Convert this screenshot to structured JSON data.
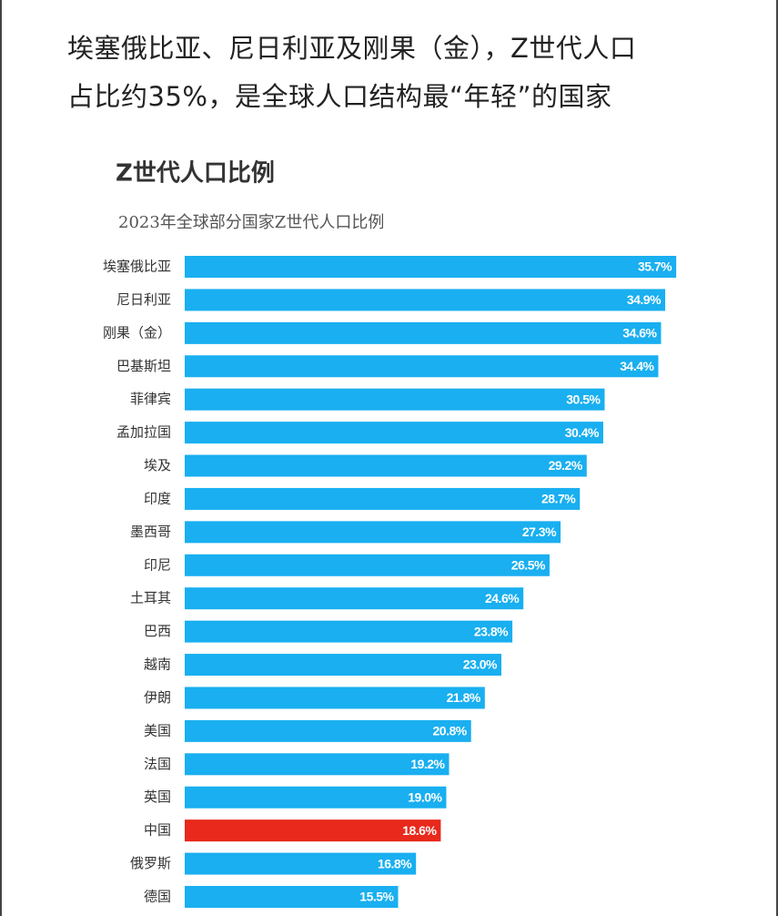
{
  "headline": [
    "埃塞俄比亚、尼日利亚及刚果（金），Z世代人口",
    "占比约35%，是全球人口结构最“年轻”的国家"
  ],
  "chart_data": {
    "type": "bar",
    "orientation": "horizontal",
    "title": "Z世代人口比例",
    "subtitle": "2023年全球部分国家Z世代人口比例",
    "categories": [
      "埃塞俄比亚",
      "尼日利亚",
      "刚果（金）",
      "巴基斯坦",
      "菲律宾",
      "孟加拉国",
      "埃及",
      "印度",
      "墨西哥",
      "印尼",
      "土耳其",
      "巴西",
      "越南",
      "伊朗",
      "美国",
      "法国",
      "英国",
      "中国",
      "俄罗斯",
      "德国"
    ],
    "values": [
      35.7,
      34.9,
      34.6,
      34.4,
      30.5,
      30.4,
      29.2,
      28.7,
      27.3,
      26.5,
      24.6,
      23.8,
      23.0,
      21.8,
      20.8,
      19.2,
      19.0,
      18.6,
      16.8,
      15.5
    ],
    "value_labels": [
      "35.7%",
      "34.9%",
      "34.6%",
      "34.4%",
      "30.5%",
      "30.4%",
      "29.2%",
      "28.7%",
      "27.3%",
      "26.5%",
      "24.6%",
      "23.8%",
      "23.0%",
      "21.8%",
      "20.8%",
      "19.2%",
      "19.0%",
      "18.6%",
      "16.8%",
      "15.5%"
    ],
    "colors": [
      "#19aff0",
      "#19aff0",
      "#19aff0",
      "#19aff0",
      "#19aff0",
      "#19aff0",
      "#19aff0",
      "#19aff0",
      "#19aff0",
      "#19aff0",
      "#19aff0",
      "#19aff0",
      "#19aff0",
      "#19aff0",
      "#19aff0",
      "#19aff0",
      "#19aff0",
      "#e8291b",
      "#19aff0",
      "#19aff0"
    ]
  }
}
